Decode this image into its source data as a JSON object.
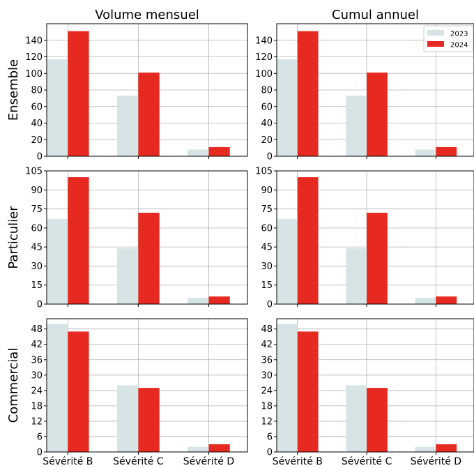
{
  "colors": {
    "2023": "#d6e4e5",
    "2024": "#e62921",
    "grid": "#b0b0b0"
  },
  "chart_data": {
    "type": "bar",
    "layout": "3x2 grid of grouped bar charts",
    "column_titles": [
      "Volume mensuel",
      "Cumul annuel"
    ],
    "row_labels": [
      "Ensemble",
      "Particulier",
      "Commercial"
    ],
    "categories": [
      "Sévérité B",
      "Sévérité C",
      "Sévérité D"
    ],
    "series_names": [
      "2023",
      "2024"
    ],
    "legend": {
      "entries": [
        "2023",
        "2024"
      ],
      "placement": "top-right",
      "panel": "row 1, Cumul annuel"
    },
    "grid": true,
    "rows": [
      {
        "label": "Ensemble",
        "ylim": [
          0,
          160
        ],
        "yticks": [
          0,
          20,
          40,
          60,
          80,
          100,
          120,
          140
        ],
        "series": [
          {
            "name": "2023",
            "values": [
              117,
              73,
              8
            ]
          },
          {
            "name": "2024",
            "values": [
              151,
              101,
              11
            ]
          }
        ]
      },
      {
        "label": "Particulier",
        "ylim": [
          0,
          105
        ],
        "yticks": [
          0,
          15,
          30,
          45,
          60,
          75,
          90,
          105
        ],
        "series": [
          {
            "name": "2023",
            "values": [
              67,
              44,
              5
            ]
          },
          {
            "name": "2024",
            "values": [
              100,
              72,
              6
            ]
          }
        ]
      },
      {
        "label": "Commercial",
        "ylim": [
          0,
          52
        ],
        "yticks": [
          0,
          6,
          12,
          18,
          24,
          30,
          36,
          42,
          48
        ],
        "series": [
          {
            "name": "2023",
            "values": [
              50,
              26,
              2
            ]
          },
          {
            "name": "2024",
            "values": [
              47,
              25,
              3
            ]
          }
        ]
      }
    ]
  }
}
